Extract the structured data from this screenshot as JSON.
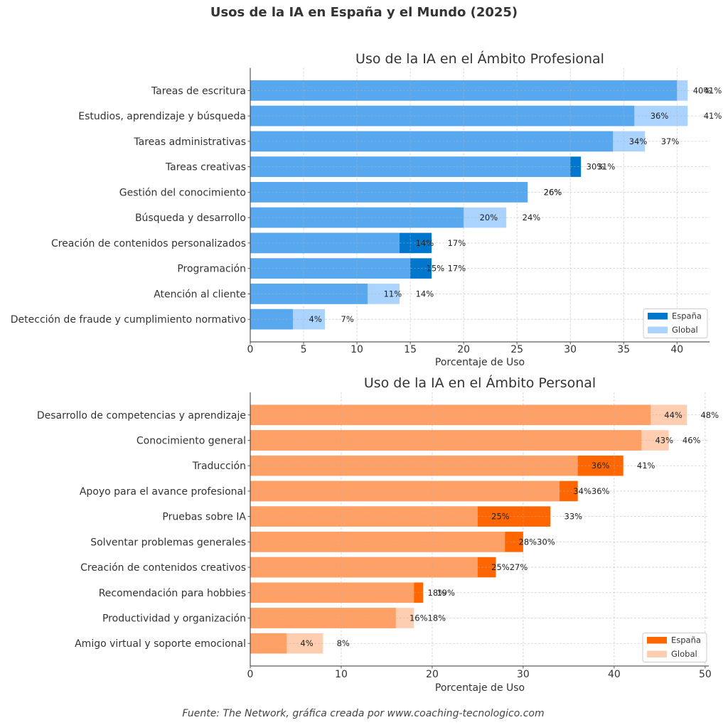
{
  "page": {
    "title": "Usos de la IA en España y el Mundo (2025)",
    "footer": "Fuente: The Network, gráfica creada por www.coaching-tecnologico.com"
  },
  "chart_data": [
    {
      "type": "bar",
      "orientation": "horizontal",
      "title": "Uso de la IA en el Ámbito Profesional",
      "xlabel": "Porcentaje de Uso",
      "ylabel": "",
      "xlim": [
        0,
        43.05
      ],
      "xticks": [
        0,
        5,
        10,
        15,
        20,
        25,
        30,
        35,
        40
      ],
      "grid": true,
      "legend": {
        "position": "lower right"
      },
      "value_suffix": "%",
      "categories": [
        "Tareas de escritura",
        "Estudios, aprendizaje y búsqueda",
        "Tareas administrativas",
        "Tareas creativas",
        "Gestión del conocimiento",
        "Búsqueda y desarrollo",
        "Creación de contenidos personalizados",
        "Programación",
        "Atención al cliente",
        "Detección de fraude y cumplimiento normativo"
      ],
      "series": [
        {
          "name": "España",
          "color": "#0077cc",
          "alpha": 1,
          "values": [
            40,
            36,
            34,
            31,
            26,
            20,
            17,
            17,
            11,
            4
          ]
        },
        {
          "name": "Global",
          "color": "#82c0ff",
          "alpha": 0.68,
          "values": [
            41,
            41,
            37,
            30,
            26,
            24,
            14,
            15,
            14,
            7
          ]
        }
      ]
    },
    {
      "type": "bar",
      "orientation": "horizontal",
      "title": "Uso de la IA en el Ámbito Personal",
      "xlabel": "Porcentaje de Uso",
      "ylabel": "",
      "xlim": [
        0,
        50.4
      ],
      "xticks": [
        0,
        10,
        20,
        30,
        40,
        50
      ],
      "grid": true,
      "legend": {
        "position": "lower right"
      },
      "value_suffix": "%",
      "categories": [
        "Desarrollo de competencias y aprendizaje",
        "Conocimiento general",
        "Traducción",
        "Apoyo para el avance profesional",
        "Pruebas sobre IA",
        "Solventar problemas generales",
        "Creación de contenidos creativos",
        "Recomendación para hobbies",
        "Productividad y organización",
        "Amigo virtual y soporte emocional"
      ],
      "series": [
        {
          "name": "España",
          "color": "#ff6600",
          "alpha": 1,
          "values": [
            44,
            43,
            41,
            36,
            33,
            30,
            27,
            19,
            16,
            4
          ]
        },
        {
          "name": "Global",
          "color": "#ffb890",
          "alpha": 0.71,
          "values": [
            48,
            46,
            36,
            34,
            25,
            28,
            25,
            18,
            18,
            8
          ]
        }
      ]
    }
  ]
}
